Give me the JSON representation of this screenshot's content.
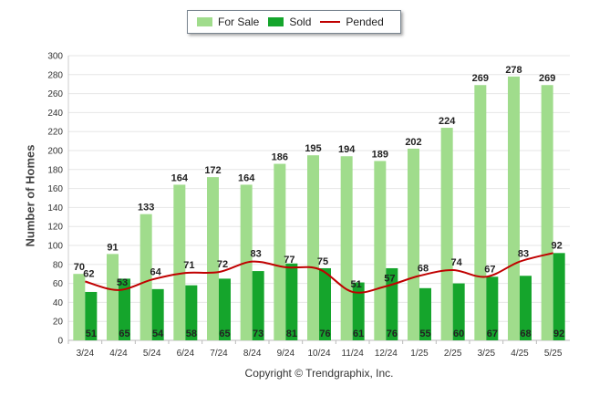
{
  "chart_data": {
    "type": "bar",
    "categories": [
      "3/24",
      "4/24",
      "5/24",
      "6/24",
      "7/24",
      "8/24",
      "9/24",
      "10/24",
      "11/24",
      "12/24",
      "1/25",
      "2/25",
      "3/25",
      "4/25",
      "5/25"
    ],
    "series": [
      {
        "name": "For Sale",
        "type": "bar",
        "color": "#a0dc8c",
        "values": [
          70,
          91,
          133,
          164,
          172,
          164,
          186,
          195,
          194,
          189,
          202,
          224,
          269,
          278,
          269
        ]
      },
      {
        "name": "Sold",
        "type": "bar",
        "color": "#15a52c",
        "values": [
          51,
          65,
          54,
          58,
          65,
          73,
          81,
          76,
          61,
          76,
          55,
          60,
          67,
          68,
          92
        ]
      },
      {
        "name": "Pended",
        "type": "line",
        "color": "#c00000",
        "values": [
          62,
          53,
          64,
          71,
          72,
          83,
          77,
          75,
          51,
          57,
          68,
          74,
          67,
          83,
          92
        ]
      }
    ],
    "ylabel": "Number of Homes",
    "ylim": [
      0,
      300
    ],
    "yticks": [
      0,
      20,
      40,
      60,
      80,
      100,
      120,
      140,
      160,
      180,
      200,
      220,
      240,
      260,
      280,
      300
    ],
    "grid": true,
    "legend_position": "top-center"
  },
  "copyright": "Copyright © Trendgraphix, Inc.",
  "colors": {
    "axis": "#cccccc",
    "grid": "#e6e6e6",
    "label": "#222222"
  }
}
